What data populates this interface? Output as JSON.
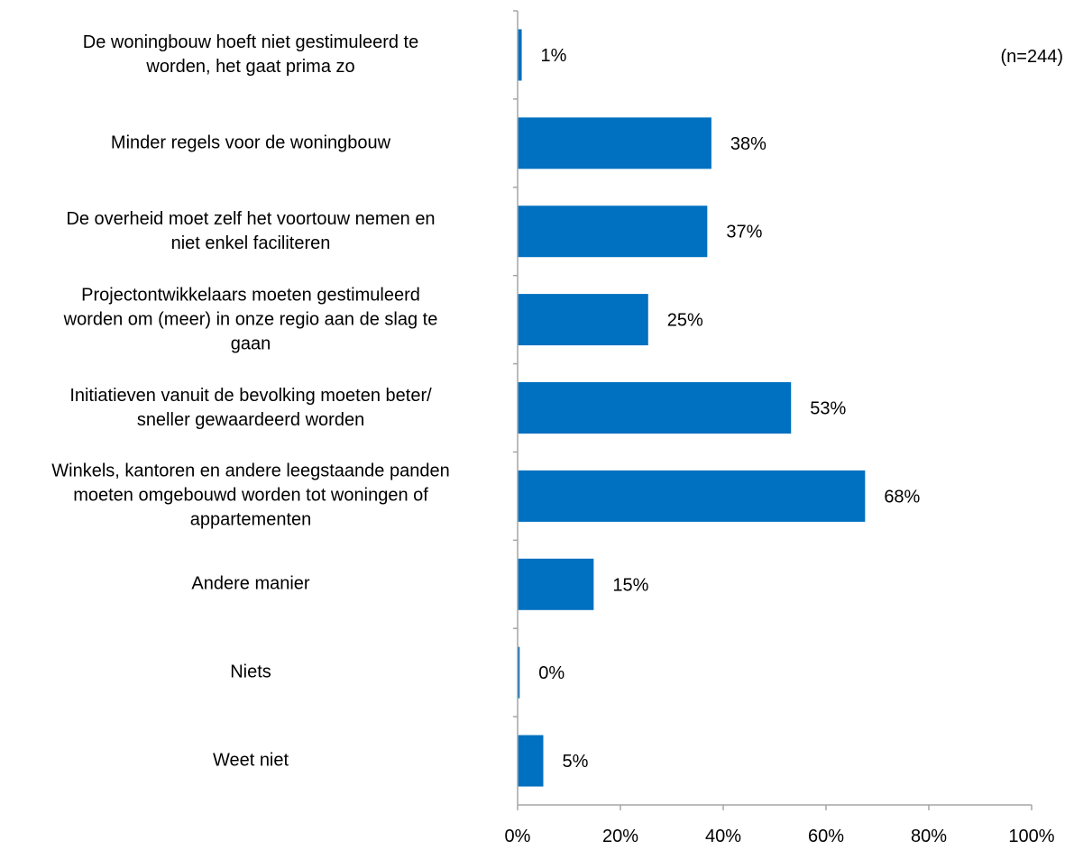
{
  "chart_data": {
    "type": "bar",
    "orientation": "horizontal",
    "note": "(n=244)",
    "categories": [
      [
        "De woningbouw hoeft niet gestimuleerd te",
        "worden, het gaat prima zo"
      ],
      [
        "Minder regels voor de woningbouw"
      ],
      [
        "De overheid moet zelf het voortouw nemen en",
        "niet enkel faciliteren"
      ],
      [
        "Projectontwikkelaars moeten gestimuleerd",
        "worden om (meer) in onze regio aan de slag te",
        "gaan"
      ],
      [
        "Initiatieven vanuit de bevolking moeten beter/",
        "sneller gewaardeerd worden"
      ],
      [
        "Winkels, kantoren en andere leegstaande panden",
        "moeten omgebouwd worden tot woningen of",
        "appartementen"
      ],
      [
        "Andere manier"
      ],
      [
        "Niets"
      ],
      [
        "Weet niet"
      ]
    ],
    "values": [
      0.8,
      37.7,
      36.9,
      25.4,
      53.2,
      67.6,
      14.8,
      0.4,
      5.0
    ],
    "data_labels": [
      "1%",
      "38%",
      "37%",
      "25%",
      "53%",
      "68%",
      "15%",
      "0%",
      "5%"
    ],
    "xlim": [
      0,
      100
    ],
    "xticks": [
      0,
      20,
      40,
      60,
      80,
      100
    ],
    "xtick_labels": [
      "0%",
      "20%",
      "40%",
      "60%",
      "80%",
      "100%"
    ],
    "grid": false,
    "colors": {
      "bar": "#0070C0",
      "axis": "#A6A6A6",
      "text": "#000000"
    }
  }
}
